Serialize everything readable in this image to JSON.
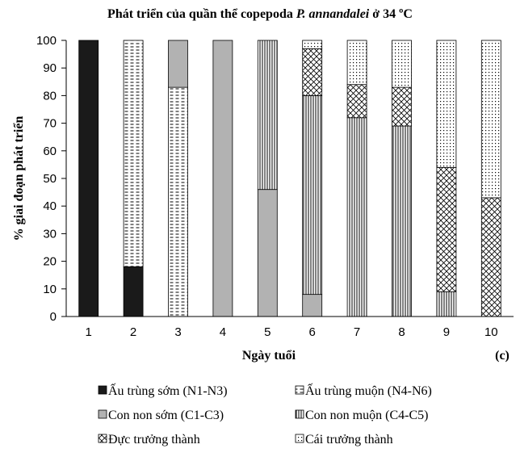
{
  "chart_data": {
    "type": "bar",
    "stacked": true,
    "title_main": "Phát triển của quần thể copepoda ",
    "title_species": "P. annandalei",
    "title_suffix": " ở 34 ºC",
    "xlabel": "Ngày tuổi",
    "ylabel": "% giai đoạn phát triển",
    "panel_label": "(c)",
    "ylim": [
      0,
      100
    ],
    "yticks": [
      0,
      10,
      20,
      30,
      40,
      50,
      60,
      70,
      80,
      90,
      100
    ],
    "categories": [
      "1",
      "2",
      "3",
      "4",
      "5",
      "6",
      "7",
      "8",
      "9",
      "10"
    ],
    "legend_position": "bottom",
    "series": [
      {
        "name": "Ấu trùng sớm (N1-N3)",
        "pattern": "solid-black",
        "values": [
          100,
          18,
          0,
          0,
          0,
          0,
          0,
          0,
          0,
          0
        ]
      },
      {
        "name": "Ấu trùng muộn (N4-N6)",
        "pattern": "dashes",
        "values": [
          0,
          82,
          83,
          0,
          0,
          0,
          0,
          0,
          0,
          0
        ]
      },
      {
        "name": "Con non sớm (C1-C3)",
        "pattern": "solid-gray",
        "values": [
          0,
          0,
          17,
          100,
          46,
          8,
          0,
          0,
          0,
          0
        ]
      },
      {
        "name": "Con non muộn (C4-C5)",
        "pattern": "vertical-lines",
        "values": [
          0,
          0,
          0,
          0,
          54,
          72,
          72,
          69,
          9,
          0
        ]
      },
      {
        "name": "Đực trưởng thành",
        "pattern": "cross-hatch",
        "values": [
          0,
          0,
          0,
          0,
          0,
          17,
          12,
          14,
          45,
          43
        ]
      },
      {
        "name": "Cái trưởng thành",
        "pattern": "dots",
        "values": [
          0,
          0,
          0,
          0,
          0,
          3,
          16,
          17,
          46,
          57
        ]
      }
    ]
  }
}
